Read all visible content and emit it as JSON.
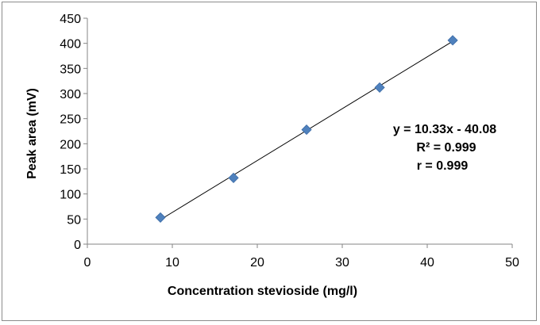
{
  "chart_data": {
    "type": "scatter",
    "title": "",
    "xlabel": "Concentration stevioside (mg/l)",
    "ylabel": "Peak area (mV)",
    "xlim": [
      0,
      50
    ],
    "ylim": [
      0,
      450
    ],
    "x_ticks": [
      0,
      10,
      20,
      30,
      40,
      50
    ],
    "y_ticks": [
      0,
      50,
      100,
      150,
      200,
      250,
      300,
      350,
      400,
      450
    ],
    "x_tick_labels": [
      "0",
      "10",
      "20",
      "30",
      "40",
      "50"
    ],
    "y_tick_labels": [
      "0",
      "50",
      "100",
      "150",
      "200",
      "250",
      "300",
      "350",
      "400",
      "450"
    ],
    "grid": false,
    "legend": "none",
    "series": [
      {
        "x": [
          8.6,
          17.2,
          25.8,
          34.4,
          43.0
        ],
        "y": [
          53,
          132,
          228,
          312,
          406
        ],
        "color": "#4f81bd",
        "marker": "diamond"
      }
    ],
    "trendline": {
      "type": "linear",
      "slope": 10.33,
      "intercept": -40.08,
      "x_range": [
        8.6,
        43.0
      ],
      "color": "#000000"
    },
    "annotations": [
      "y = 10.33x - 40.08",
      "R² = 0.999",
      "r = 0.999"
    ]
  }
}
